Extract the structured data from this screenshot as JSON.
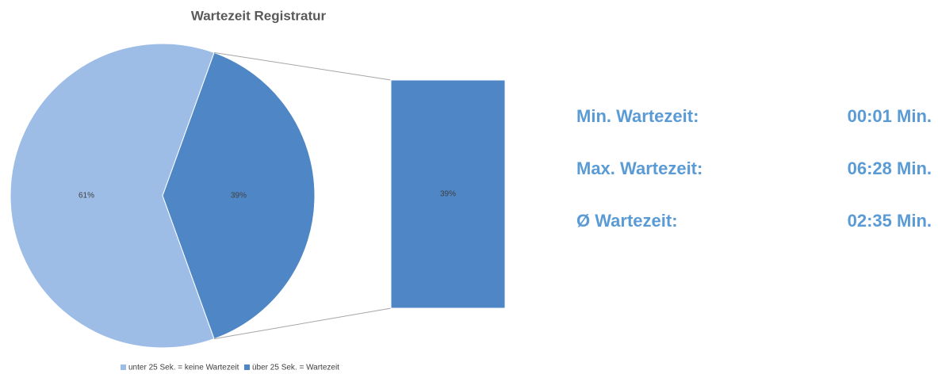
{
  "chart_data": {
    "type": "pie",
    "title": "Wartezeit Registratur",
    "categories": [
      "unter 25 Sek. = keine Wartezeit",
      "über 25 Sek. = Wartezeit"
    ],
    "values": [
      61,
      39
    ],
    "value_labels": [
      "61%",
      "39%"
    ],
    "colors": [
      "#9dbde6",
      "#4f86c6"
    ],
    "bar_of_pie": {
      "values": [
        39
      ],
      "value_labels": [
        "39%"
      ]
    }
  },
  "stats": [
    {
      "label": "Min. Wartezeit:",
      "value": "00:01 Min."
    },
    {
      "label": "Max. Wartezeit:",
      "value": "06:28 Min."
    },
    {
      "label": "Ø Wartezeit:",
      "value": "02:35 Min."
    }
  ]
}
